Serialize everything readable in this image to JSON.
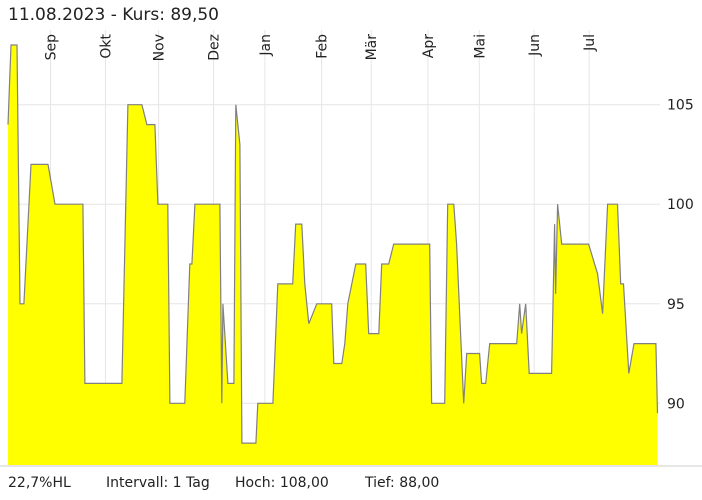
{
  "chart_data": {
    "type": "area",
    "title": "11.08.2023  -  Kurs: 89,50",
    "footer": [
      "22,7%HL",
      "Intervall: 1 Tag",
      "Hoch:  108,00",
      "Tief:  88,00"
    ],
    "x": [
      0,
      1.7,
      5.1,
      6.8,
      9,
      13,
      22.6,
      26.5,
      42.3,
      43.4,
      64.3,
      67.7,
      75.6,
      78.4,
      82.9,
      84.6,
      90.2,
      91.4,
      99.8,
      102.6,
      103.8,
      105.5,
      119.6,
      120.7,
      121.3,
      124.1,
      127.5,
      128.6,
      130.9,
      132,
      139.9,
      141,
      149.5,
      152.3,
      160.7,
      162.4,
      165.8,
      167.5,
      169.8,
      174.3,
      182.7,
      183.9,
      188.4,
      190.1,
      191.8,
      196.3,
      201.9,
      203.6,
      209.3,
      210.9,
      214.9,
      217.7,
      238,
      239.1,
      246.5,
      248.2,
      251.6,
      253.2,
      257.2,
      258.9,
      266.2,
      267.3,
      269.6,
      271.9,
      287.1,
      288.8,
      289.9,
      292.2,
      294.2,
      306.8,
      308.5,
      309.1,
      310.2,
      312.5,
      327.7,
      332.8,
      335.6,
      338.4,
      344,
      345.8,
      347.4,
      350.4,
      353.3,
      365.7,
      366.6
    ],
    "values": [
      104,
      108,
      108,
      95,
      95,
      102,
      102,
      100,
      100,
      91,
      91,
      105,
      105,
      104,
      104,
      100,
      100,
      90,
      90,
      97,
      97,
      100,
      100,
      90,
      95,
      91,
      91,
      105,
      103,
      88,
      88,
      90,
      90,
      96,
      96,
      99,
      99,
      96,
      94,
      95,
      95,
      92,
      92,
      93,
      95,
      97,
      97,
      93.5,
      93.5,
      97,
      97,
      98,
      98,
      90,
      90,
      100,
      100,
      98,
      90,
      92.5,
      92.5,
      91,
      91,
      93,
      93,
      95,
      93.5,
      95,
      91.5,
      91.5,
      99,
      95.5,
      100,
      98,
      98,
      96.5,
      94.5,
      100,
      100,
      96,
      96,
      91.5,
      93,
      93,
      89.5
    ],
    "color": "#ffff00",
    "line_color": "#808080",
    "xlim": [
      0,
      368
    ],
    "xticks": [
      {
        "value": 24,
        "label": "Sep"
      },
      {
        "value": 55,
        "label": "Okt"
      },
      {
        "value": 85,
        "label": "Nov"
      },
      {
        "value": 116,
        "label": "Dez"
      },
      {
        "value": 145,
        "label": "Jan"
      },
      {
        "value": 177,
        "label": "Feb"
      },
      {
        "value": 205,
        "label": "Mär"
      },
      {
        "value": 237,
        "label": "Apr"
      },
      {
        "value": 266,
        "label": "Mai"
      },
      {
        "value": 297,
        "label": "Jun"
      },
      {
        "value": 328,
        "label": "Jul"
      }
    ],
    "ylim": [
      86.9,
      108.0
    ],
    "yticks": [
      90,
      95,
      100,
      105
    ],
    "grid": true
  }
}
